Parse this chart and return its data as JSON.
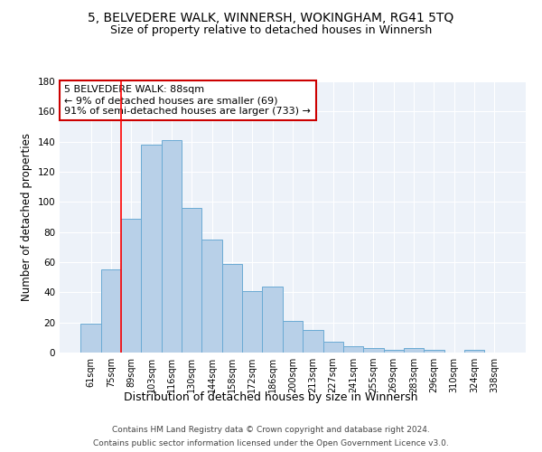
{
  "title1": "5, BELVEDERE WALK, WINNERSH, WOKINGHAM, RG41 5TQ",
  "title2": "Size of property relative to detached houses in Winnersh",
  "xlabel": "Distribution of detached houses by size in Winnersh",
  "ylabel": "Number of detached properties",
  "bar_labels": [
    "61sqm",
    "75sqm",
    "89sqm",
    "103sqm",
    "116sqm",
    "130sqm",
    "144sqm",
    "158sqm",
    "172sqm",
    "186sqm",
    "200sqm",
    "213sqm",
    "227sqm",
    "241sqm",
    "255sqm",
    "269sqm",
    "283sqm",
    "296sqm",
    "310sqm",
    "324sqm",
    "338sqm"
  ],
  "bar_heights": [
    19,
    55,
    89,
    138,
    141,
    96,
    75,
    59,
    41,
    44,
    21,
    15,
    7,
    4,
    3,
    2,
    3,
    2,
    0,
    2,
    0
  ],
  "bar_color": "#b8d0e8",
  "bar_edge_color": "#6aaad4",
  "grid_color": "#ccd9e8",
  "bg_color": "#edf2f9",
  "property_line_x": 2.0,
  "annotation_lines": [
    "5 BELVEDERE WALK: 88sqm",
    "← 9% of detached houses are smaller (69)",
    "91% of semi-detached houses are larger (733) →"
  ],
  "annotation_box_color": "#cc0000",
  "ylim": [
    0,
    180
  ],
  "footnote1": "Contains HM Land Registry data © Crown copyright and database right 2024.",
  "footnote2": "Contains public sector information licensed under the Open Government Licence v3.0.",
  "title1_fontsize": 10,
  "title2_fontsize": 9,
  "tick_fontsize": 7,
  "ylabel_fontsize": 8.5,
  "xlabel_fontsize": 9,
  "annotation_fontsize": 8,
  "footnote_fontsize": 6.5
}
